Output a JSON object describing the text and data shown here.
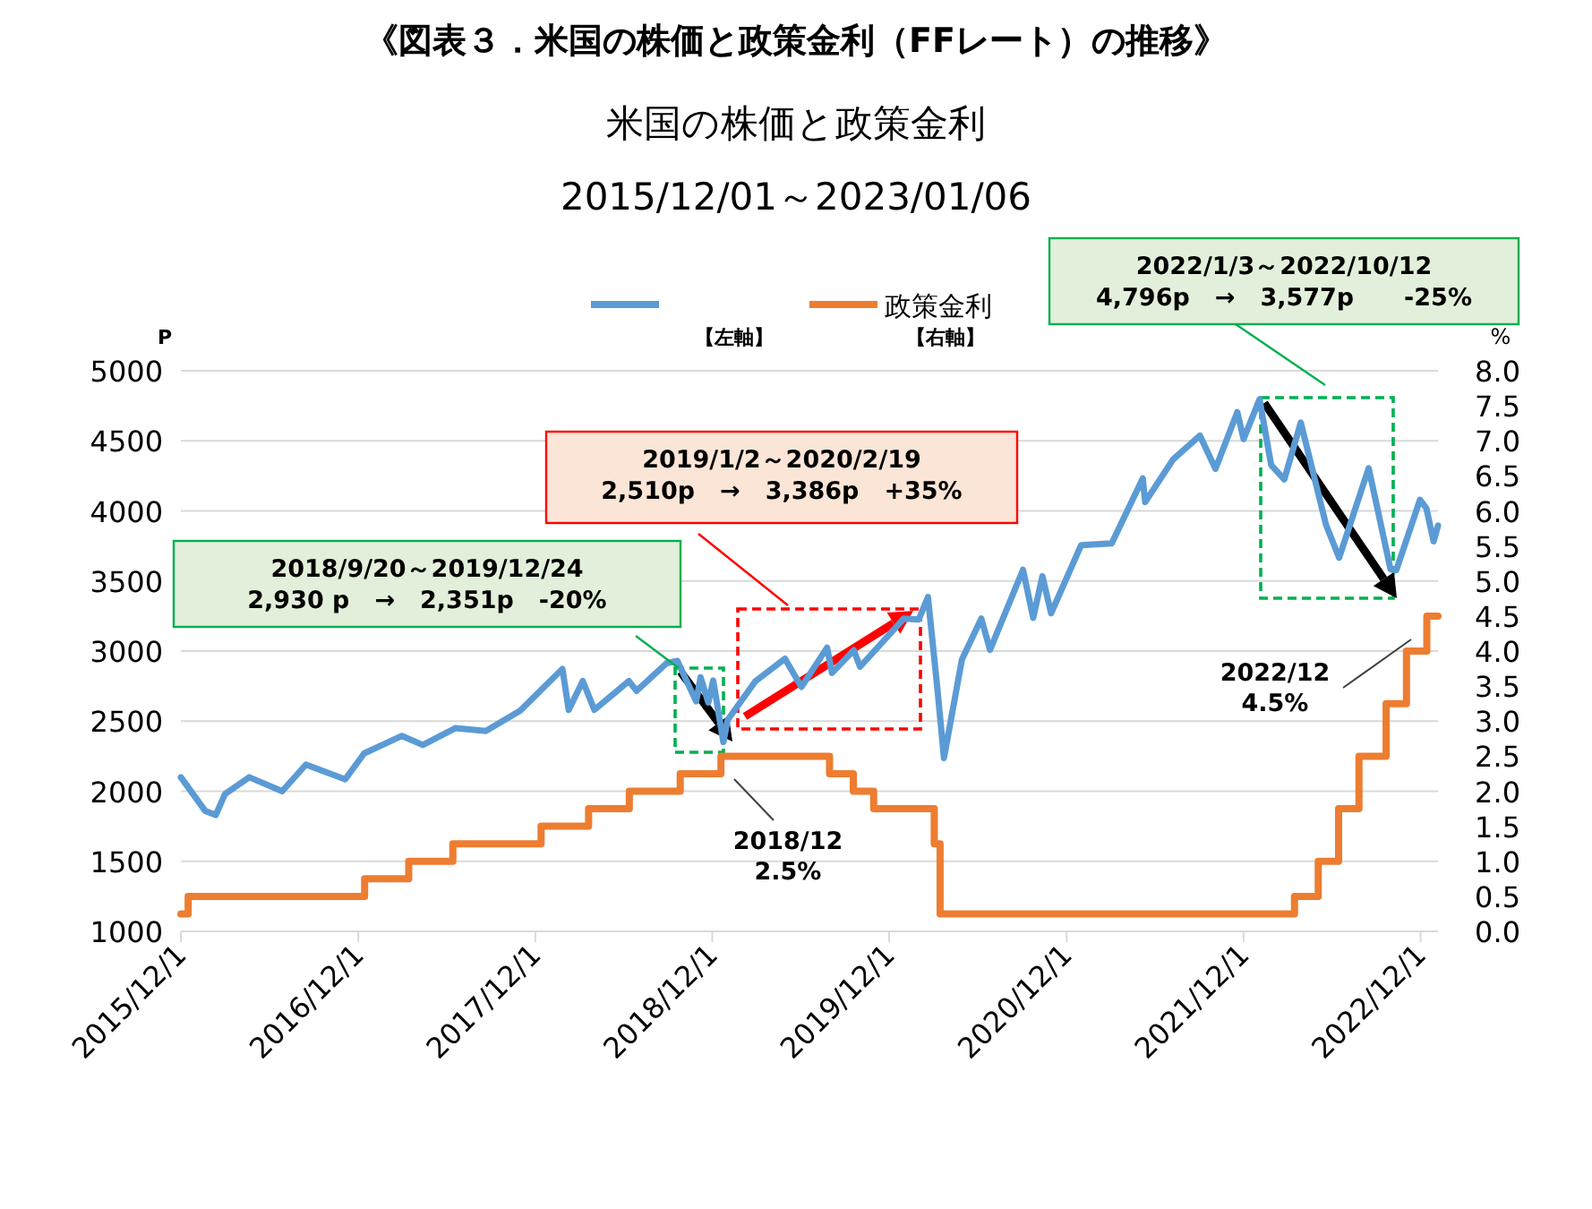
{
  "chart_data": {
    "type": "line",
    "title": "《図表３．米国の株価と政策金利（FFレート）の推移》",
    "subtitle": "米国の株価と政策金利\n2015/12/01～2023/01/06",
    "ylabel": "P",
    "y2label": "%",
    "annotations": [
      "2018/9/20～2019/12/24\n2,930 p　→　2,351p　-20%",
      "2019/1/2～2020/2/19\n2,510p　→　3,386p　+35%",
      "2022/1/3～2022/10/12\n4,796p　→　3,577p　　-25%",
      "2018/12\n2.5%",
      "2022/12\n4.5%",
      "【左軸】",
      "【右軸】"
    ],
    "xlim": [
      "2015-12-01",
      "2023-01-06"
    ],
    "xticks": [
      {
        "value": "2015-12-01",
        "label": "2015/12/1"
      },
      {
        "value": "2016-12-01",
        "label": "2016/12/1"
      },
      {
        "value": "2017-12-01",
        "label": "2017/12/1"
      },
      {
        "value": "2018-12-01",
        "label": "2018/12/1"
      },
      {
        "value": "2019-12-01",
        "label": "2019/12/1"
      },
      {
        "value": "2020-12-01",
        "label": "2020/12/1"
      },
      {
        "value": "2021-12-01",
        "label": "2021/12/1"
      },
      {
        "value": "2022-12-01",
        "label": "2022/12/1"
      }
    ],
    "ylim": [
      1000,
      5000
    ],
    "yticks": [
      1000,
      1500,
      2000,
      2500,
      3000,
      3500,
      4000,
      4500,
      5000
    ],
    "y2lim": [
      0,
      8
    ],
    "y2ticks": [
      {
        "value": 0,
        "label": "0.0"
      },
      {
        "value": 0.5,
        "label": "0.5"
      },
      {
        "value": 1,
        "label": "1.0"
      },
      {
        "value": 1.5,
        "label": "1.5"
      },
      {
        "value": 2,
        "label": "2.0"
      },
      {
        "value": 2.5,
        "label": "2.5"
      },
      {
        "value": 3,
        "label": "3.0"
      },
      {
        "value": 3.5,
        "label": "3.5"
      },
      {
        "value": 4,
        "label": "4.0"
      },
      {
        "value": 4.5,
        "label": "4.5"
      },
      {
        "value": 5,
        "label": "5.0"
      },
      {
        "value": 5.5,
        "label": "5.5"
      },
      {
        "value": 6,
        "label": "6.0"
      },
      {
        "value": 6.5,
        "label": "6.5"
      },
      {
        "value": 7,
        "label": "7.0"
      },
      {
        "value": 7.5,
        "label": "7.5"
      },
      {
        "value": 8,
        "label": "8.0"
      }
    ],
    "grid": "y",
    "legend": "top",
    "marker": "none",
    "line_style": "solid",
    "series": [
      {
        "color": "#5b9bd5",
        "x": [
          "2015-12-01",
          "2016-01-20",
          "2016-02-11",
          "2016-03-01",
          "2016-04-20",
          "2016-06-27",
          "2016-08-15",
          "2016-11-04",
          "2016-12-13",
          "2017-03-01",
          "2017-04-13",
          "2017-06-19",
          "2017-08-21",
          "2017-10-31",
          "2018-01-26",
          "2018-02-08",
          "2018-03-09",
          "2018-04-02",
          "2018-06-12",
          "2018-06-28",
          "2018-08-29",
          "2018-09-20",
          "2018-10-29",
          "2018-11-07",
          "2018-11-23",
          "2018-12-03",
          "2018-12-24",
          "2019-01-02",
          "2019-02-28",
          "2019-04-30",
          "2019-06-03",
          "2019-07-26",
          "2019-08-05",
          "2019-09-19",
          "2019-10-02",
          "2019-12-31",
          "2020-01-31",
          "2020-02-19",
          "2020-03-09",
          "2020-03-23",
          "2020-04-29",
          "2020-06-08",
          "2020-06-26",
          "2020-09-02",
          "2020-09-23",
          "2020-10-12",
          "2020-10-30",
          "2020-12-31",
          "2021-03-04",
          "2021-05-07",
          "2021-05-12",
          "2021-07-09",
          "2021-09-02",
          "2021-10-04",
          "2021-11-18",
          "2021-12-01",
          "2022-01-03",
          "2022-01-27",
          "2022-02-23",
          "2022-03-29",
          "2022-05-20",
          "2022-06-16",
          "2022-08-16",
          "2022-09-30",
          "2022-10-12",
          "2022-11-30",
          "2022-12-13",
          "2022-12-28",
          "2023-01-06"
        ],
        "values": [
          2100,
          1860,
          1830,
          1980,
          2100,
          2000,
          2190,
          2085,
          2270,
          2395,
          2330,
          2450,
          2430,
          2575,
          2873,
          2580,
          2786,
          2581,
          2786,
          2716,
          2914,
          2930,
          2641,
          2813,
          2633,
          2790,
          2351,
          2510,
          2784,
          2946,
          2744,
          3025,
          2844,
          3006,
          2888,
          3231,
          3225,
          3386,
          2746,
          2237,
          2939,
          3232,
          3009,
          3580,
          3237,
          3534,
          3270,
          3756,
          3768,
          4232,
          4063,
          4369,
          4537,
          4300,
          4705,
          4513,
          4796,
          4326,
          4225,
          4631,
          3901,
          3666,
          4305,
          3585,
          3577,
          4080,
          4019,
          3783,
          3895
        ]
      },
      {
        "name": "政策金利",
        "color": "#ed7d31",
        "type": "step",
        "axis": "y2",
        "x": [
          "2015-12-01",
          "2015-12-16",
          "2016-12-14",
          "2017-03-15",
          "2017-06-14",
          "2017-12-13",
          "2018-03-21",
          "2018-06-13",
          "2018-09-26",
          "2018-12-19",
          "2019-07-31",
          "2019-09-18",
          "2019-10-30",
          "2020-03-03",
          "2020-03-15",
          "2022-03-16",
          "2022-05-04",
          "2022-06-15",
          "2022-07-27",
          "2022-09-21",
          "2022-11-02",
          "2022-12-14",
          "2023-01-06"
        ],
        "values": [
          0.25,
          0.5,
          0.75,
          1.0,
          1.25,
          1.5,
          1.75,
          2.0,
          2.25,
          2.5,
          2.25,
          2.0,
          1.75,
          1.25,
          0.25,
          0.5,
          1.0,
          1.75,
          2.5,
          3.25,
          4.0,
          4.5,
          4.5
        ]
      }
    ]
  }
}
